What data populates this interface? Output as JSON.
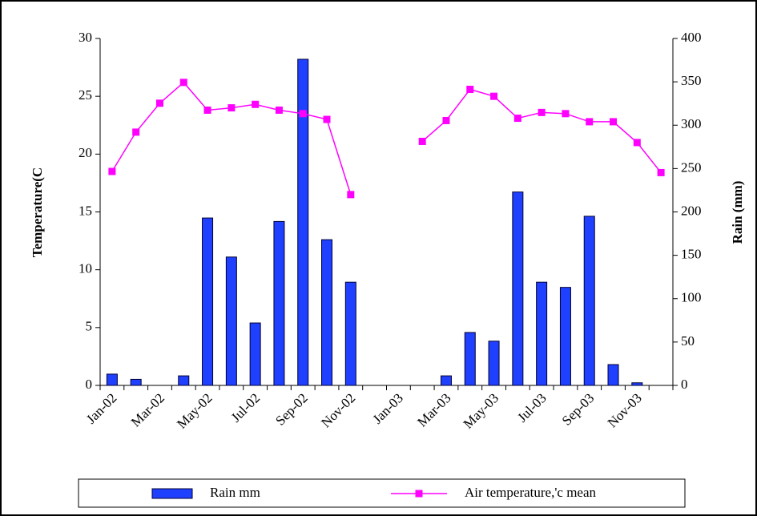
{
  "chart_data": {
    "type": "combo",
    "categories": [
      "Jan-02",
      null,
      "Mar-02",
      null,
      "May-02",
      null,
      "Jul-02",
      null,
      "Sep-02",
      null,
      "Nov-02",
      null,
      "Jan-03",
      null,
      "Mar-03",
      null,
      "May-03",
      null,
      "Jul-03",
      null,
      "Sep-03",
      null,
      "Nov-03",
      null
    ],
    "y_label": "Temperature(C",
    "y2_label": "Rain (mm)",
    "ylim": [
      0,
      30
    ],
    "yticks": [
      0,
      5,
      10,
      15,
      20,
      25,
      30
    ],
    "y2lim": [
      0,
      400
    ],
    "y2ticks": [
      0,
      50,
      100,
      150,
      200,
      250,
      300,
      350,
      400
    ],
    "legend": "bottom",
    "series": [
      {
        "name": "Rain  mm",
        "type": "bar",
        "axis": "y2",
        "color": "#2040ff",
        "values": [
          13,
          7,
          0,
          11,
          193,
          148,
          72,
          189,
          376,
          168,
          119,
          0,
          0,
          0,
          11,
          61,
          51,
          223,
          119,
          113,
          195,
          24,
          3,
          0
        ]
      },
      {
        "name": "Air temperature,'c mean",
        "type": "line",
        "color": "#ff00ff",
        "values": [
          18.5,
          21.9,
          24.4,
          26.2,
          23.8,
          24.0,
          24.3,
          23.8,
          23.5,
          23.0,
          16.5,
          null,
          null,
          21.1,
          22.9,
          25.6,
          25.0,
          23.1,
          23.6,
          23.5,
          22.8,
          22.8,
          21.0,
          18.4
        ]
      }
    ]
  }
}
